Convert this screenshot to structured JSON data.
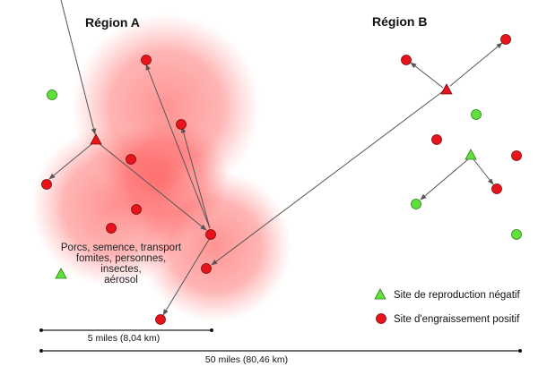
{
  "regions": {
    "a_label": "Région A",
    "b_label": "Région B"
  },
  "transmission_note": {
    "line1": "Porcs, semence, transport",
    "line2": "fomites, personnes,",
    "line3": "insectes,",
    "line4": "aérosol"
  },
  "legend": {
    "negative_label": "Site de reproduction négatif",
    "positive_label": "Site d'engraissement positif"
  },
  "scale": {
    "short_label": "5 miles (8,04 km)",
    "long_label": "50 miles (80,46 km)"
  },
  "colors": {
    "positive_red": "#e8141c",
    "negative_green": "#5fe03a",
    "zone_red": "#ff4d4d",
    "arrow_gray": "#555555"
  }
}
